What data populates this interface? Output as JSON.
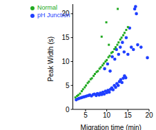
{
  "chart_data": {
    "type": "scatter",
    "x_label": "Migration time (min)",
    "y_label": "Peak Width (s)",
    "xlim": [
      2,
      20
    ],
    "xticks": [
      5,
      10,
      15,
      20
    ],
    "ylim": [
      0,
      22
    ],
    "yticks": [
      0,
      5,
      10,
      15,
      20
    ],
    "grid": false,
    "legend": "upper left",
    "series": [
      {
        "name": "pH Junction",
        "color": "#1f3fff",
        "marker": "circle",
        "x": [
          2.8,
          3.2,
          3.5,
          3.9,
          4.2,
          4.6,
          5.0,
          5.3,
          5.7,
          6.0,
          6.4,
          6.8,
          7.1,
          7.5,
          7.8,
          8.2,
          8.5,
          8.8,
          9.1,
          9.4,
          9.7,
          10.0,
          10.3,
          10.6,
          10.9,
          11.2,
          11.5,
          11.8,
          12.1,
          12.4,
          12.7,
          13.0,
          13.3,
          13.6,
          13.9,
          14.2,
          14.5,
          9.5,
          10.2,
          10.8,
          11.3,
          11.9,
          12.3,
          12.8,
          13.2,
          13.7,
          14.1,
          14.6,
          15.0,
          15.4,
          15.8,
          16.3,
          16.6,
          17.0,
          17.3,
          18.1,
          19.6,
          16.8
        ],
        "values": [
          2.0,
          2.2,
          2.3,
          2.4,
          2.5,
          2.6,
          2.7,
          2.8,
          2.9,
          3.0,
          2.8,
          3.1,
          3.2,
          2.9,
          3.3,
          3.0,
          3.4,
          3.1,
          3.6,
          3.2,
          3.8,
          3.5,
          4.0,
          3.6,
          4.2,
          4.5,
          4.1,
          5.0,
          4.6,
          5.4,
          5.0,
          5.8,
          6.2,
          5.6,
          6.5,
          7.0,
          6.6,
          8.5,
          9.5,
          8.0,
          11.0,
          10.5,
          12.5,
          11.5,
          13.0,
          14.0,
          12.0,
          15.0,
          11.5,
          17.0,
          13.0,
          12.5,
          21.0,
          20.0,
          13.5,
          13.0,
          10.8,
          21.5
        ]
      },
      {
        "name": "Normal",
        "color": "#22aa22",
        "marker": "square",
        "x": [
          2.6,
          3.0,
          3.3,
          3.7,
          4.1,
          4.4,
          4.8,
          5.1,
          5.5,
          5.8,
          6.2,
          6.5,
          6.9,
          7.2,
          7.6,
          7.9,
          8.3,
          8.6,
          9.0,
          9.3,
          9.7,
          10.0,
          10.4,
          10.7,
          11.1,
          11.4,
          11.8,
          12.1,
          12.5,
          12.8,
          13.2,
          13.5,
          13.9,
          14.2,
          14.6,
          15.0,
          8.8,
          9.9,
          12.6,
          10.5
        ],
        "values": [
          2.5,
          2.8,
          3.0,
          3.3,
          3.8,
          4.2,
          4.6,
          5.0,
          5.5,
          5.8,
          6.3,
          6.5,
          7.0,
          7.4,
          7.8,
          8.0,
          8.5,
          8.8,
          9.2,
          9.6,
          10.0,
          10.3,
          10.9,
          11.2,
          11.8,
          12.0,
          12.6,
          13.0,
          13.5,
          14.0,
          14.6,
          15.0,
          15.5,
          16.0,
          16.6,
          17.2,
          15.2,
          18.2,
          21.0,
          13.5
        ]
      }
    ]
  }
}
